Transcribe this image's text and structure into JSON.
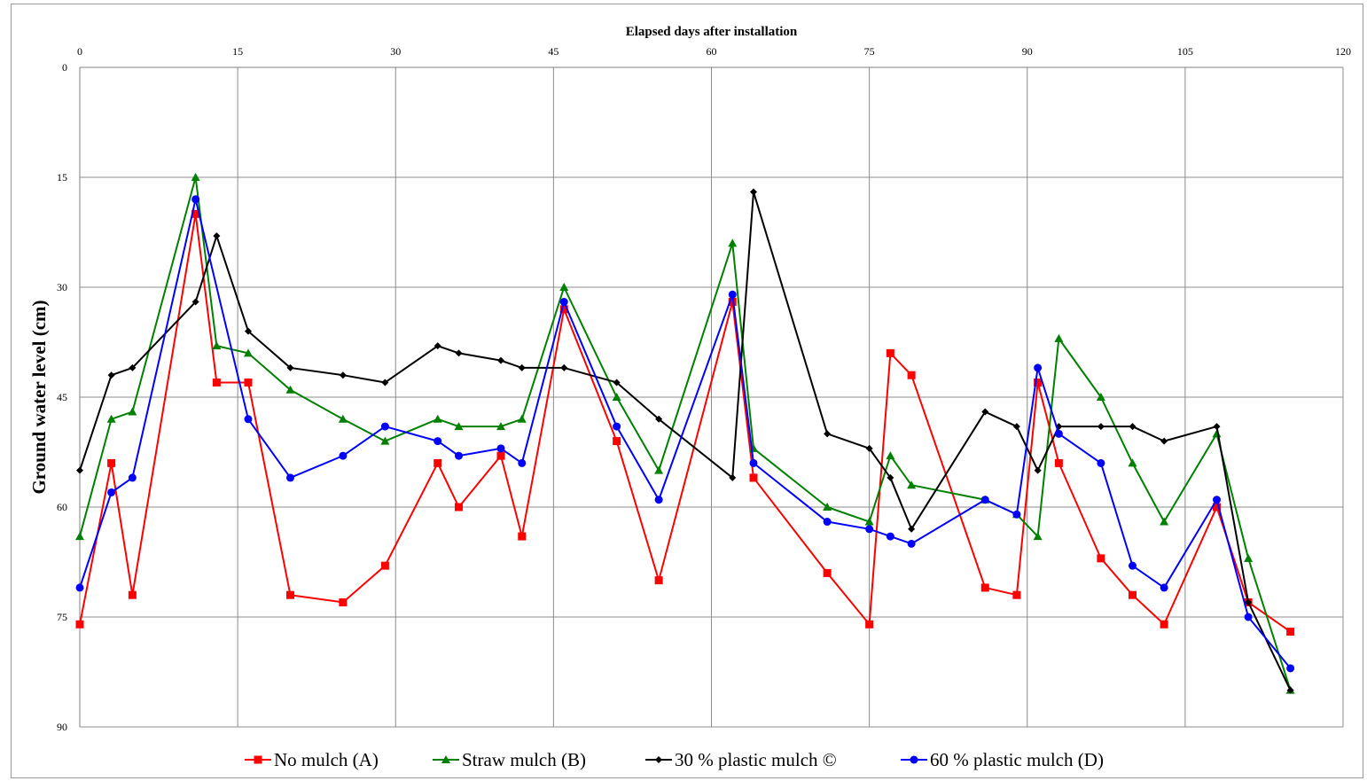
{
  "chart_data": {
    "type": "line",
    "title": "Elapsed days after installation",
    "xlabel": "Elapsed days after installation",
    "ylabel": "Ground  water level (cm)",
    "xlim": [
      0,
      120
    ],
    "ylim": [
      0,
      90
    ],
    "y_inverted": true,
    "x_axis_position": "top",
    "x_ticks": [
      0,
      15,
      30,
      45,
      60,
      75,
      90,
      105,
      120
    ],
    "y_ticks": [
      0,
      15,
      30,
      45,
      60,
      75,
      90
    ],
    "grid": true,
    "legend_position": "bottom",
    "series": [
      {
        "name": "No mulch (A)",
        "color": "#ff0000",
        "marker": "square",
        "x": [
          0,
          3,
          5,
          11,
          13,
          16,
          20,
          25,
          29,
          34,
          36,
          40,
          42,
          46,
          51,
          55,
          62,
          64,
          71,
          75,
          77,
          79,
          86,
          89,
          91,
          93,
          97,
          100,
          103,
          108,
          111,
          115
        ],
        "y": [
          76,
          54,
          72,
          20,
          43,
          43,
          72,
          73,
          68,
          54,
          60,
          53,
          64,
          33,
          51,
          70,
          32,
          56,
          69,
          76,
          39,
          42,
          71,
          72,
          43,
          54,
          67,
          72,
          76,
          60,
          73,
          77
        ]
      },
      {
        "name": "Straw mulch (B)",
        "color": "#008000",
        "marker": "triangle",
        "x": [
          0,
          3,
          5,
          11,
          13,
          16,
          20,
          25,
          29,
          34,
          36,
          40,
          42,
          46,
          51,
          55,
          62,
          64,
          71,
          75,
          77,
          79,
          86,
          89,
          91,
          93,
          97,
          100,
          103,
          108,
          111,
          115
        ],
        "y": [
          64,
          48,
          47,
          15,
          38,
          39,
          44,
          48,
          51,
          48,
          49,
          49,
          48,
          30,
          45,
          55,
          24,
          52,
          60,
          62,
          53,
          57,
          59,
          61,
          64,
          37,
          45,
          54,
          62,
          50,
          67,
          85
        ]
      },
      {
        "name": "30 % plastic mulch ©",
        "color": "#000000",
        "marker": "diamond",
        "x": [
          0,
          3,
          5,
          11,
          13,
          16,
          20,
          25,
          29,
          34,
          36,
          40,
          42,
          46,
          51,
          55,
          62,
          64,
          71,
          75,
          77,
          79,
          86,
          89,
          91,
          93,
          97,
          100,
          103,
          108,
          111,
          115
        ],
        "y": [
          55,
          42,
          41,
          32,
          23,
          36,
          41,
          42,
          43,
          38,
          39,
          40,
          41,
          41,
          43,
          48,
          56,
          17,
          50,
          52,
          56,
          63,
          47,
          49,
          55,
          49,
          49,
          49,
          51,
          49,
          73,
          85
        ]
      },
      {
        "name": "60 % plastic mulch (D)",
        "color": "#0000ff",
        "marker": "circle",
        "x": [
          0,
          3,
          5,
          11,
          16,
          20,
          25,
          29,
          34,
          36,
          40,
          42,
          46,
          51,
          55,
          62,
          64,
          71,
          75,
          77,
          79,
          86,
          89,
          91,
          93,
          97,
          100,
          103,
          108,
          111,
          115
        ],
        "y": [
          71,
          58,
          56,
          18,
          48,
          56,
          53,
          49,
          51,
          53,
          52,
          54,
          32,
          49,
          59,
          31,
          54,
          62,
          63,
          64,
          65,
          59,
          61,
          41,
          50,
          54,
          68,
          71,
          59,
          75,
          82
        ]
      }
    ]
  }
}
